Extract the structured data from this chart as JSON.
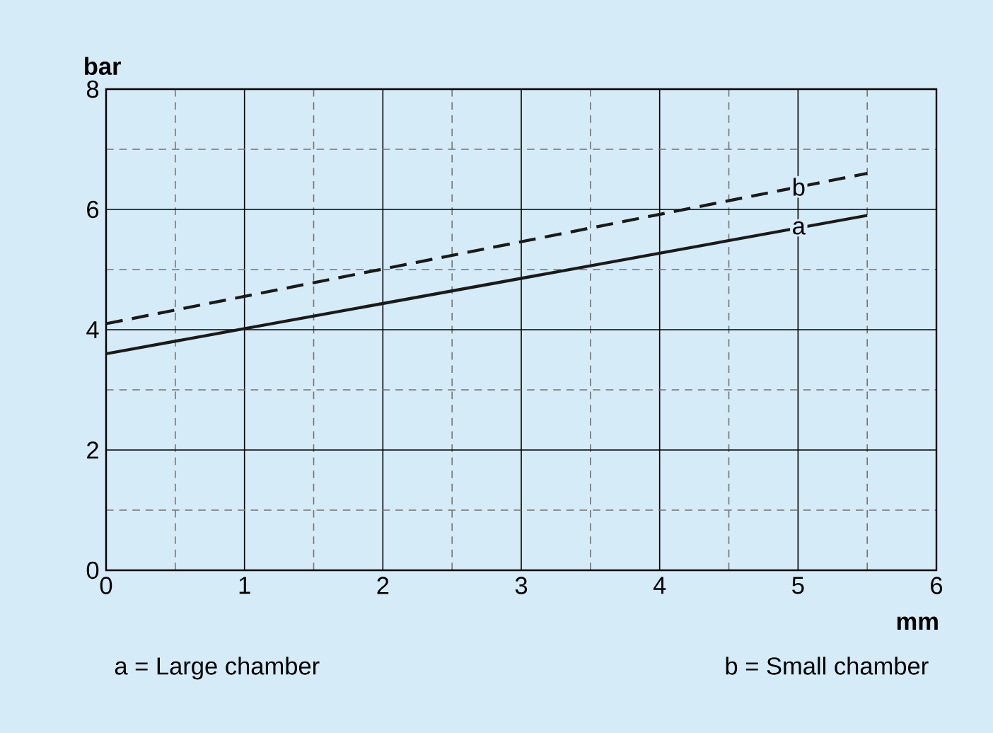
{
  "chart_data": {
    "type": "line",
    "xlabel": "mm",
    "ylabel": "bar",
    "x": [
      0,
      5.5
    ],
    "series": [
      {
        "name": "a",
        "color": "#1a1a1a",
        "values": [
          3.6,
          5.9
        ],
        "line_style": "solid"
      },
      {
        "name": "b",
        "color": "#1a1a1a",
        "values": [
          4.1,
          6.6
        ],
        "line_style": "dashed"
      }
    ],
    "xlim": [
      0,
      6
    ],
    "ylim": [
      0,
      8
    ],
    "xticks": [
      0,
      1,
      2,
      3,
      4,
      5,
      6
    ],
    "yticks": [
      0,
      2,
      4,
      6,
      8
    ],
    "grid": true,
    "annotations": [
      "a = Large chamber",
      "b = Small chamber"
    ]
  }
}
